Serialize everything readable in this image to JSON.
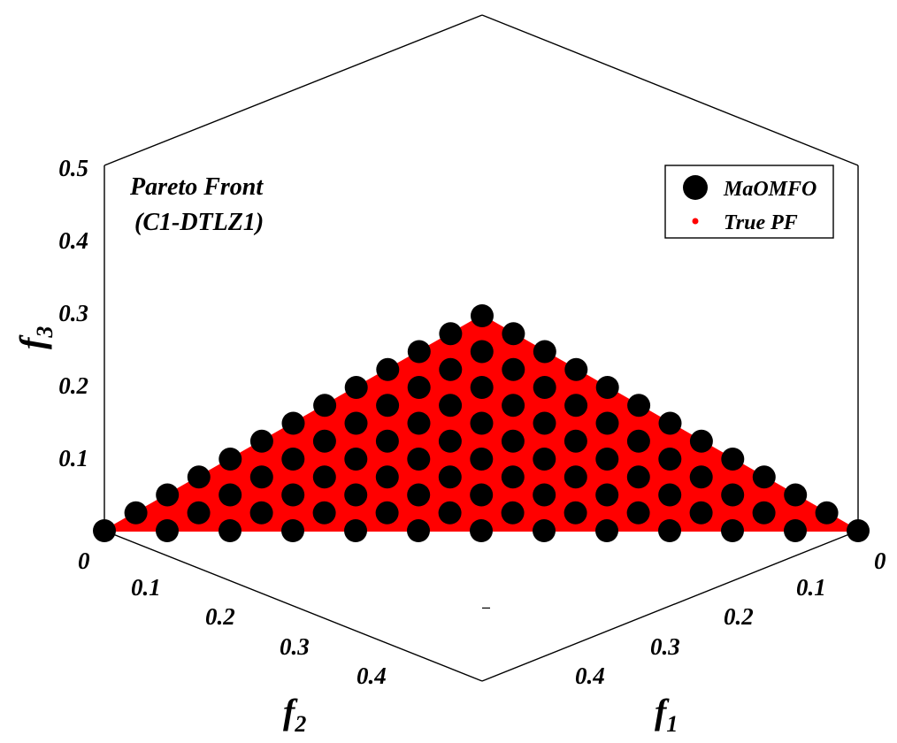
{
  "chart_data": {
    "type": "scatter",
    "title": "Pareto Front",
    "subtitle": "(C1-DTLZ1)",
    "axes": {
      "f1": {
        "label": "f",
        "subscript": "1",
        "ticks": [
          "0",
          "0.1",
          "0.2",
          "0.3",
          "0.4"
        ],
        "range": [
          0,
          0.5
        ]
      },
      "f2": {
        "label": "f",
        "subscript": "2",
        "ticks": [
          "0",
          "0.1",
          "0.2",
          "0.3",
          "0.4"
        ],
        "range": [
          0,
          0.5
        ]
      },
      "f3": {
        "label": "f",
        "subscript": "3",
        "ticks": [
          "0.1",
          "0.2",
          "0.3",
          "0.4",
          "0.5"
        ],
        "range": [
          0,
          0.5
        ]
      }
    },
    "constraint": "f1 + f2 + f3 = 0.5",
    "grid_divisions": 12,
    "series": [
      {
        "name": "MaOMFO",
        "marker": "large-circle",
        "color": "#000000",
        "sampling": "uniform simplex lattice, step 0.5/12"
      },
      {
        "name": "True PF",
        "marker": "dot",
        "color": "#ff0000",
        "sampling": "dense fill of the simplex"
      }
    ],
    "legend_position": "top-right",
    "view": "projection along (1,1,1)"
  }
}
